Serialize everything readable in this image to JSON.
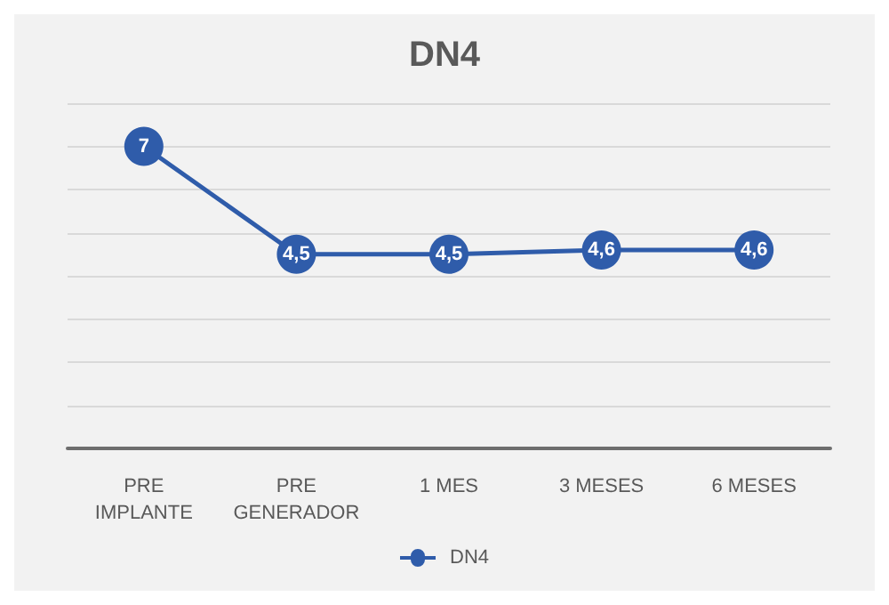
{
  "chart_data": {
    "type": "line",
    "title": "DN4",
    "categories": [
      "PRE\nIMPLANTE",
      "PRE\nGENERADOR",
      "1 MES",
      "3 MESES",
      "6 MESES"
    ],
    "series": [
      {
        "name": "DN4",
        "color": "#2f5caa",
        "values": [
          7,
          4.5,
          4.5,
          4.6,
          4.6
        ],
        "value_labels": [
          "7",
          "4,5",
          "4,5",
          "4,6",
          "4,6"
        ]
      }
    ],
    "ylim": [
      0,
      8
    ],
    "yticks": [
      {
        "value": 0,
        "label": null
      },
      {
        "value": 1,
        "label": null
      },
      {
        "value": 2,
        "label": null
      },
      {
        "value": 3,
        "label": null
      },
      {
        "value": 4,
        "label": null
      },
      {
        "value": 5,
        "label": null
      },
      {
        "value": 6,
        "label": null
      },
      {
        "value": 7,
        "label": null
      },
      {
        "value": 8,
        "label": null
      }
    ],
    "grid": "y",
    "legend": "bottom",
    "tick_labels": "x",
    "marker": "circle",
    "line_style": "solid"
  }
}
